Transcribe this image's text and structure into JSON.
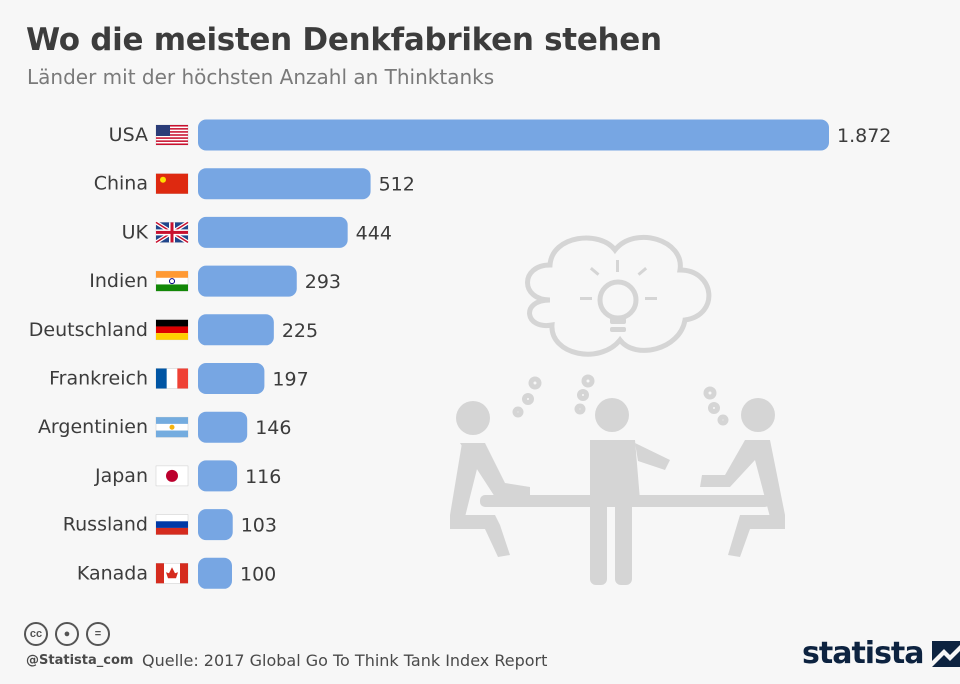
{
  "title": "Wo die meisten Denkfabriken stehen",
  "subtitle": "Länder mit der höchsten Anzahl an Thinktanks",
  "chart_data": {
    "type": "bar",
    "orientation": "horizontal",
    "categories": [
      "USA",
      "China",
      "UK",
      "Indien",
      "Deutschland",
      "Frankreich",
      "Argentinien",
      "Japan",
      "Russland",
      "Kanada"
    ],
    "values": [
      1872,
      512,
      444,
      293,
      225,
      197,
      146,
      116,
      103,
      100
    ],
    "value_labels": [
      "1.872",
      "512",
      "444",
      "293",
      "225",
      "197",
      "146",
      "116",
      "103",
      "100"
    ],
    "bar_color": "#77a6e3"
  },
  "footer": {
    "source": "Quelle: 2017 Global Go To Think Tank Index Report",
    "handle": "@Statista_com",
    "logo": "statista",
    "license_icons": [
      "cc-icon",
      "by-icon",
      "nd-icon"
    ]
  }
}
